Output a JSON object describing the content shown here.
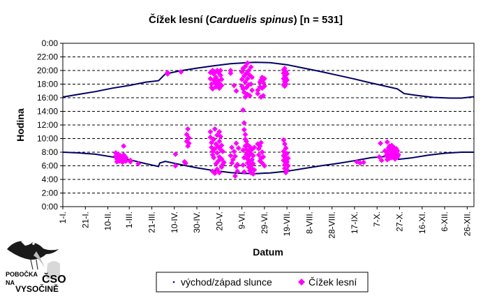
{
  "colors": {
    "sun_line": "#000066",
    "points": "#ff00ff",
    "grid": "#000000",
    "background": "#ffffff"
  },
  "logo": {
    "line1": "POBOČKA",
    "line2": "NA",
    "line3": "ČSO",
    "line4": "VYSOČINĚ",
    "icon": "bird-logo-icon"
  },
  "chart_data": {
    "type": "scatter",
    "title_main": "Čížek lesní (",
    "title_italic": "Carduelis spinus",
    "title_tail": ") [n = 531]",
    "xlabel": "Datum",
    "ylabel": "Hodina",
    "x_unit": "day of year",
    "xlim": [
      1,
      366
    ],
    "ylim": [
      0,
      24
    ],
    "grid": true,
    "legend_position": "bottom-center",
    "x_ticks": [
      {
        "day": 1,
        "label": "1-I."
      },
      {
        "day": 21,
        "label": "21-I."
      },
      {
        "day": 41,
        "label": "10-II."
      },
      {
        "day": 60,
        "label": "1-III."
      },
      {
        "day": 80,
        "label": "21-III."
      },
      {
        "day": 100,
        "label": "10-IV."
      },
      {
        "day": 120,
        "label": "30-IV."
      },
      {
        "day": 140,
        "label": "20-V."
      },
      {
        "day": 160,
        "label": "9-VI."
      },
      {
        "day": 180,
        "label": "29-VI."
      },
      {
        "day": 200,
        "label": "19-VII."
      },
      {
        "day": 220,
        "label": "8-VIII."
      },
      {
        "day": 240,
        "label": "28-VIII."
      },
      {
        "day": 260,
        "label": "17-IX."
      },
      {
        "day": 280,
        "label": "7-X."
      },
      {
        "day": 300,
        "label": "27-X."
      },
      {
        "day": 320,
        "label": "16-XI."
      },
      {
        "day": 340,
        "label": "6-XII."
      },
      {
        "day": 360,
        "label": "26-XII."
      }
    ],
    "y_ticks": [
      "0:00",
      "2:00",
      "4:00",
      "6:00",
      "8:00",
      "10:00",
      "12:00",
      "14:00",
      "16:00",
      "18:00",
      "20:00",
      "22:00",
      "0:00"
    ],
    "series": [
      {
        "name": "východ/západ slunce",
        "kind": "line",
        "sunrise": [
          [
            1,
            8.0
          ],
          [
            15,
            7.9
          ],
          [
            30,
            7.7
          ],
          [
            45,
            7.3
          ],
          [
            60,
            6.9
          ],
          [
            75,
            6.3
          ],
          [
            86,
            5.9
          ],
          [
            87,
            6.4
          ],
          [
            92,
            6.65
          ],
          [
            105,
            6.2
          ],
          [
            120,
            5.7
          ],
          [
            135,
            5.3
          ],
          [
            150,
            5.0
          ],
          [
            160,
            4.9
          ],
          [
            172,
            4.85
          ],
          [
            185,
            4.95
          ],
          [
            200,
            5.2
          ],
          [
            215,
            5.6
          ],
          [
            230,
            6.0
          ],
          [
            245,
            6.35
          ],
          [
            260,
            6.75
          ],
          [
            275,
            7.2
          ],
          [
            298,
            7.5
          ],
          [
            299,
            6.95
          ],
          [
            310,
            7.15
          ],
          [
            325,
            7.55
          ],
          [
            340,
            7.85
          ],
          [
            355,
            8.0
          ],
          [
            366,
            8.0
          ]
        ],
        "sunset": [
          [
            1,
            16.1
          ],
          [
            15,
            16.5
          ],
          [
            30,
            16.9
          ],
          [
            45,
            17.4
          ],
          [
            60,
            17.8
          ],
          [
            75,
            18.3
          ],
          [
            86,
            18.5
          ],
          [
            92,
            19.5
          ],
          [
            105,
            19.95
          ],
          [
            120,
            20.35
          ],
          [
            135,
            20.7
          ],
          [
            150,
            21.0
          ],
          [
            165,
            21.15
          ],
          [
            172,
            21.2
          ],
          [
            185,
            21.15
          ],
          [
            200,
            20.85
          ],
          [
            215,
            20.35
          ],
          [
            230,
            19.85
          ],
          [
            245,
            19.3
          ],
          [
            260,
            18.75
          ],
          [
            275,
            18.15
          ],
          [
            290,
            17.6
          ],
          [
            298,
            17.3
          ],
          [
            304,
            16.6
          ],
          [
            315,
            16.35
          ],
          [
            330,
            16.05
          ],
          [
            345,
            15.95
          ],
          [
            355,
            15.95
          ],
          [
            366,
            16.15
          ]
        ]
      },
      {
        "name": "Čížek lesní",
        "kind": "points",
        "points": [
          [
            48,
            7.9
          ],
          [
            48,
            7.4
          ],
          [
            49,
            7.0
          ],
          [
            49,
            6.6
          ],
          [
            50,
            7.7
          ],
          [
            50,
            7.2
          ],
          [
            51,
            6.9
          ],
          [
            51,
            6.7
          ],
          [
            52,
            7.5
          ],
          [
            52,
            7.1
          ],
          [
            53,
            7.3
          ],
          [
            53,
            6.8
          ],
          [
            54,
            7.0
          ],
          [
            54,
            6.5
          ],
          [
            55,
            7.6
          ],
          [
            55,
            8.9
          ],
          [
            55,
            7.1
          ],
          [
            56,
            7.4
          ],
          [
            56,
            6.8
          ],
          [
            57,
            7.2
          ],
          [
            57,
            6.7
          ],
          [
            61,
            6.6
          ],
          [
            61,
            6.8
          ],
          [
            68,
            6.3
          ],
          [
            94,
            19.7
          ],
          [
            94,
            19.5
          ],
          [
            101,
            6.0
          ],
          [
            101,
            7.7
          ],
          [
            106,
            19.8
          ],
          [
            109,
            6.6
          ],
          [
            110,
            6.4
          ],
          [
            111,
            9.6
          ],
          [
            111,
            10.6
          ],
          [
            112,
            11.4
          ],
          [
            112,
            8.9
          ],
          [
            113,
            10.1
          ],
          [
            113,
            9.3
          ],
          [
            132,
            19.7
          ],
          [
            132,
            18.8
          ],
          [
            133,
            18.0
          ],
          [
            133,
            17.5
          ],
          [
            134,
            20.0
          ],
          [
            134,
            17.3
          ],
          [
            135,
            19.5
          ],
          [
            135,
            18.6
          ],
          [
            136,
            19.8
          ],
          [
            136,
            18.2
          ],
          [
            137,
            17.6
          ],
          [
            137,
            19.0
          ],
          [
            138,
            20.0
          ],
          [
            138,
            17.9
          ],
          [
            139,
            18.5
          ],
          [
            139,
            19.7
          ],
          [
            140,
            18.1
          ],
          [
            140,
            17.4
          ],
          [
            141,
            19.3
          ],
          [
            141,
            20.0
          ],
          [
            142,
            18.7
          ],
          [
            142,
            17.8
          ],
          [
            132,
            11.0
          ],
          [
            132,
            10.2
          ],
          [
            133,
            9.4
          ],
          [
            133,
            8.7
          ],
          [
            134,
            8.1
          ],
          [
            134,
            7.6
          ],
          [
            135,
            9.9
          ],
          [
            135,
            7.2
          ],
          [
            136,
            11.4
          ],
          [
            136,
            8.5
          ],
          [
            137,
            9.2
          ],
          [
            137,
            6.3
          ],
          [
            138,
            10.5
          ],
          [
            138,
            7.9
          ],
          [
            139,
            8.8
          ],
          [
            139,
            6.7
          ],
          [
            140,
            11.0
          ],
          [
            140,
            9.6
          ],
          [
            140,
            7.3
          ],
          [
            141,
            8.4
          ],
          [
            141,
            10.3
          ],
          [
            142,
            9.0
          ],
          [
            142,
            7.0
          ],
          [
            143,
            8.1
          ],
          [
            143,
            6.2
          ],
          [
            134,
            5.2
          ],
          [
            136,
            4.9
          ],
          [
            138,
            5.5
          ],
          [
            140,
            5.0
          ],
          [
            142,
            5.8
          ],
          [
            144,
            6.5
          ],
          [
            150,
            20.0
          ],
          [
            150,
            19.6
          ],
          [
            153,
            17.8
          ],
          [
            155,
            17.0
          ],
          [
            150,
            7.5
          ],
          [
            151,
            8.7
          ],
          [
            151,
            6.4
          ],
          [
            152,
            6.9
          ],
          [
            153,
            8.1
          ],
          [
            154,
            7.4
          ],
          [
            155,
            9.3
          ],
          [
            155,
            5.9
          ],
          [
            156,
            6.2
          ],
          [
            157,
            8.6
          ],
          [
            154,
            4.5
          ],
          [
            156,
            5.2
          ],
          [
            160,
            19.8
          ],
          [
            160,
            18.7
          ],
          [
            160,
            17.7
          ],
          [
            161,
            20.3
          ],
          [
            161,
            17.3
          ],
          [
            162,
            19.2
          ],
          [
            162,
            16.8
          ],
          [
            163,
            18.3
          ],
          [
            163,
            16.1
          ],
          [
            163,
            20.6
          ],
          [
            164,
            19.6
          ],
          [
            164,
            17.5
          ],
          [
            165,
            18.8
          ],
          [
            165,
            16.5
          ],
          [
            165,
            21.1
          ],
          [
            166,
            20.0
          ],
          [
            166,
            17.9
          ],
          [
            167,
            19.3
          ],
          [
            167,
            16.3
          ],
          [
            168,
            18.0
          ],
          [
            168,
            20.5
          ],
          [
            169,
            17.1
          ],
          [
            169,
            19.0
          ],
          [
            161,
            14.2
          ],
          [
            162,
            12.3
          ],
          [
            162,
            11.3
          ],
          [
            163,
            10.6
          ],
          [
            163,
            9.9
          ],
          [
            163,
            8.9
          ],
          [
            164,
            9.6
          ],
          [
            164,
            8.4
          ],
          [
            164,
            7.7
          ],
          [
            165,
            9.1
          ],
          [
            165,
            7.0
          ],
          [
            165,
            6.4
          ],
          [
            166,
            8.2
          ],
          [
            166,
            7.4
          ],
          [
            166,
            5.8
          ],
          [
            167,
            8.8
          ],
          [
            167,
            6.7
          ],
          [
            167,
            5.3
          ],
          [
            168,
            7.8
          ],
          [
            168,
            6.1
          ],
          [
            168,
            5.0
          ],
          [
            169,
            8.4
          ],
          [
            169,
            6.9
          ],
          [
            169,
            5.6
          ],
          [
            170,
            7.5
          ],
          [
            170,
            6.3
          ],
          [
            170,
            4.8
          ],
          [
            171,
            8.7
          ],
          [
            171,
            5.4
          ],
          [
            161,
            8.3
          ],
          [
            161,
            6.1
          ],
          [
            162,
            7.2
          ],
          [
            162,
            5.1
          ],
          [
            174,
            17.1
          ],
          [
            174,
            16.6
          ],
          [
            176,
            18.3
          ],
          [
            176,
            17.6
          ],
          [
            177,
            18.6
          ],
          [
            177,
            16.1
          ],
          [
            178,
            19.0
          ],
          [
            178,
            17.4
          ],
          [
            179,
            18.2
          ],
          [
            179,
            16.3
          ],
          [
            180,
            17.7
          ],
          [
            180,
            18.8
          ],
          [
            174,
            9.2
          ],
          [
            175,
            8.5
          ],
          [
            175,
            7.6
          ],
          [
            176,
            8.9
          ],
          [
            176,
            6.7
          ],
          [
            177,
            7.1
          ],
          [
            177,
            9.4
          ],
          [
            178,
            8.0
          ],
          [
            178,
            6.4
          ],
          [
            179,
            7.3
          ],
          [
            180,
            6.0
          ],
          [
            197,
            20.1
          ],
          [
            197,
            19.6
          ],
          [
            197,
            18.8
          ],
          [
            197,
            17.9
          ],
          [
            198,
            20.3
          ],
          [
            198,
            19.2
          ],
          [
            198,
            18.4
          ],
          [
            198,
            17.7
          ],
          [
            199,
            19.8
          ],
          [
            199,
            18.9
          ],
          [
            199,
            18.0
          ],
          [
            200,
            19.5
          ],
          [
            200,
            18.6
          ],
          [
            197,
            9.8
          ],
          [
            197,
            8.1
          ],
          [
            197,
            7.5
          ],
          [
            197,
            6.8
          ],
          [
            198,
            9.2
          ],
          [
            198,
            7.3
          ],
          [
            198,
            6.1
          ],
          [
            198,
            5.6
          ],
          [
            199,
            8.6
          ],
          [
            199,
            7.0
          ],
          [
            199,
            6.4
          ],
          [
            199,
            5.0
          ],
          [
            200,
            7.8
          ],
          [
            200,
            6.6
          ],
          [
            200,
            5.4
          ],
          [
            201,
            7.1
          ],
          [
            201,
            6.0
          ],
          [
            262,
            6.6
          ],
          [
            265,
            6.4
          ],
          [
            268,
            6.5
          ],
          [
            282,
            7.3
          ],
          [
            283,
            9.3
          ],
          [
            284,
            6.8
          ],
          [
            287,
            8.2
          ],
          [
            288,
            7.5
          ],
          [
            289,
            9.5
          ],
          [
            289,
            8.0
          ],
          [
            290,
            8.6
          ],
          [
            290,
            7.7
          ],
          [
            291,
            8.9
          ],
          [
            291,
            7.1
          ],
          [
            292,
            8.3
          ],
          [
            292,
            7.6
          ],
          [
            293,
            9.0
          ],
          [
            293,
            7.2
          ],
          [
            294,
            8.4
          ],
          [
            294,
            7.9
          ],
          [
            295,
            8.7
          ],
          [
            295,
            7.4
          ],
          [
            296,
            8.1
          ],
          [
            296,
            7.0
          ],
          [
            297,
            8.5
          ],
          [
            297,
            7.8
          ],
          [
            298,
            7.3
          ],
          [
            298,
            8.2
          ],
          [
            299,
            7.6
          ],
          [
            289,
            6.9
          ]
        ]
      }
    ]
  }
}
